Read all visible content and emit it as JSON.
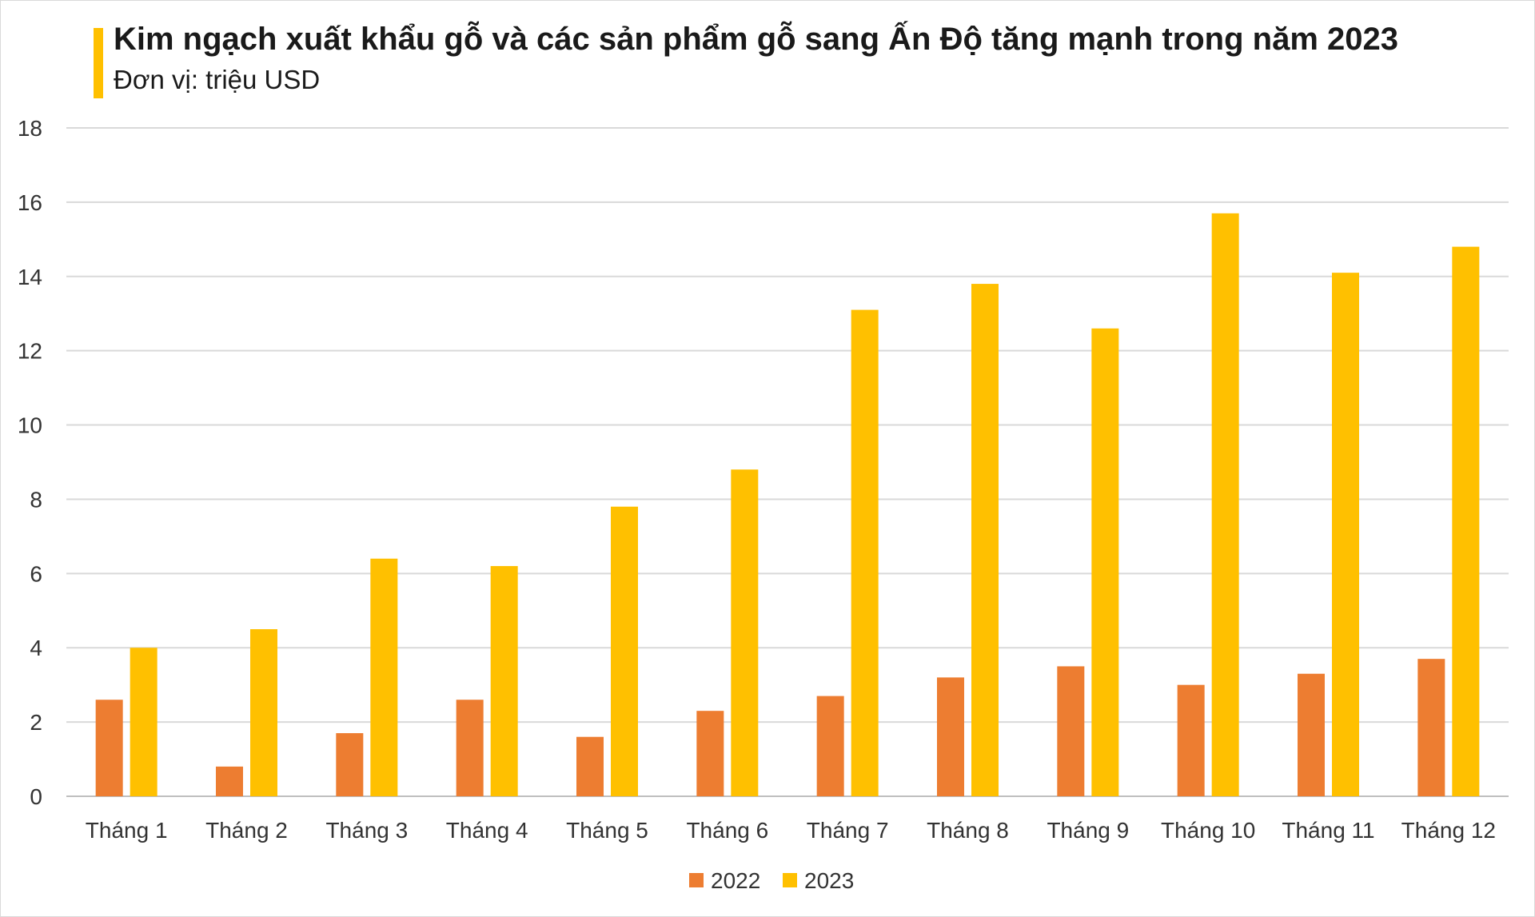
{
  "chart_data": {
    "type": "bar",
    "title": "Kim ngạch xuất khẩu gỗ và các sản phẩm gỗ sang Ấn Độ tăng mạnh trong năm 2023",
    "subtitle": "Đơn vị: triệu USD",
    "categories": [
      "Tháng 1",
      "Tháng 2",
      "Tháng 3",
      "Tháng 4",
      "Tháng 5",
      "Tháng 6",
      "Tháng 7",
      "Tháng 8",
      "Tháng 9",
      "Tháng 10",
      "Tháng 11",
      "Tháng 12"
    ],
    "series": [
      {
        "name": "2022",
        "color": "#ed7d31",
        "values": [
          2.6,
          0.8,
          1.7,
          2.6,
          1.6,
          2.3,
          2.7,
          3.2,
          3.5,
          3.0,
          3.3,
          3.7
        ]
      },
      {
        "name": "2023",
        "color": "#ffc000",
        "values": [
          4.0,
          4.5,
          6.4,
          6.2,
          7.8,
          8.8,
          13.1,
          13.8,
          12.6,
          15.7,
          14.1,
          14.8
        ]
      }
    ],
    "ylim": [
      0,
      18
    ],
    "yticks": [
      0,
      2,
      4,
      6,
      8,
      10,
      12,
      14,
      16,
      18
    ],
    "grid": true,
    "legend": "bottom-center"
  }
}
